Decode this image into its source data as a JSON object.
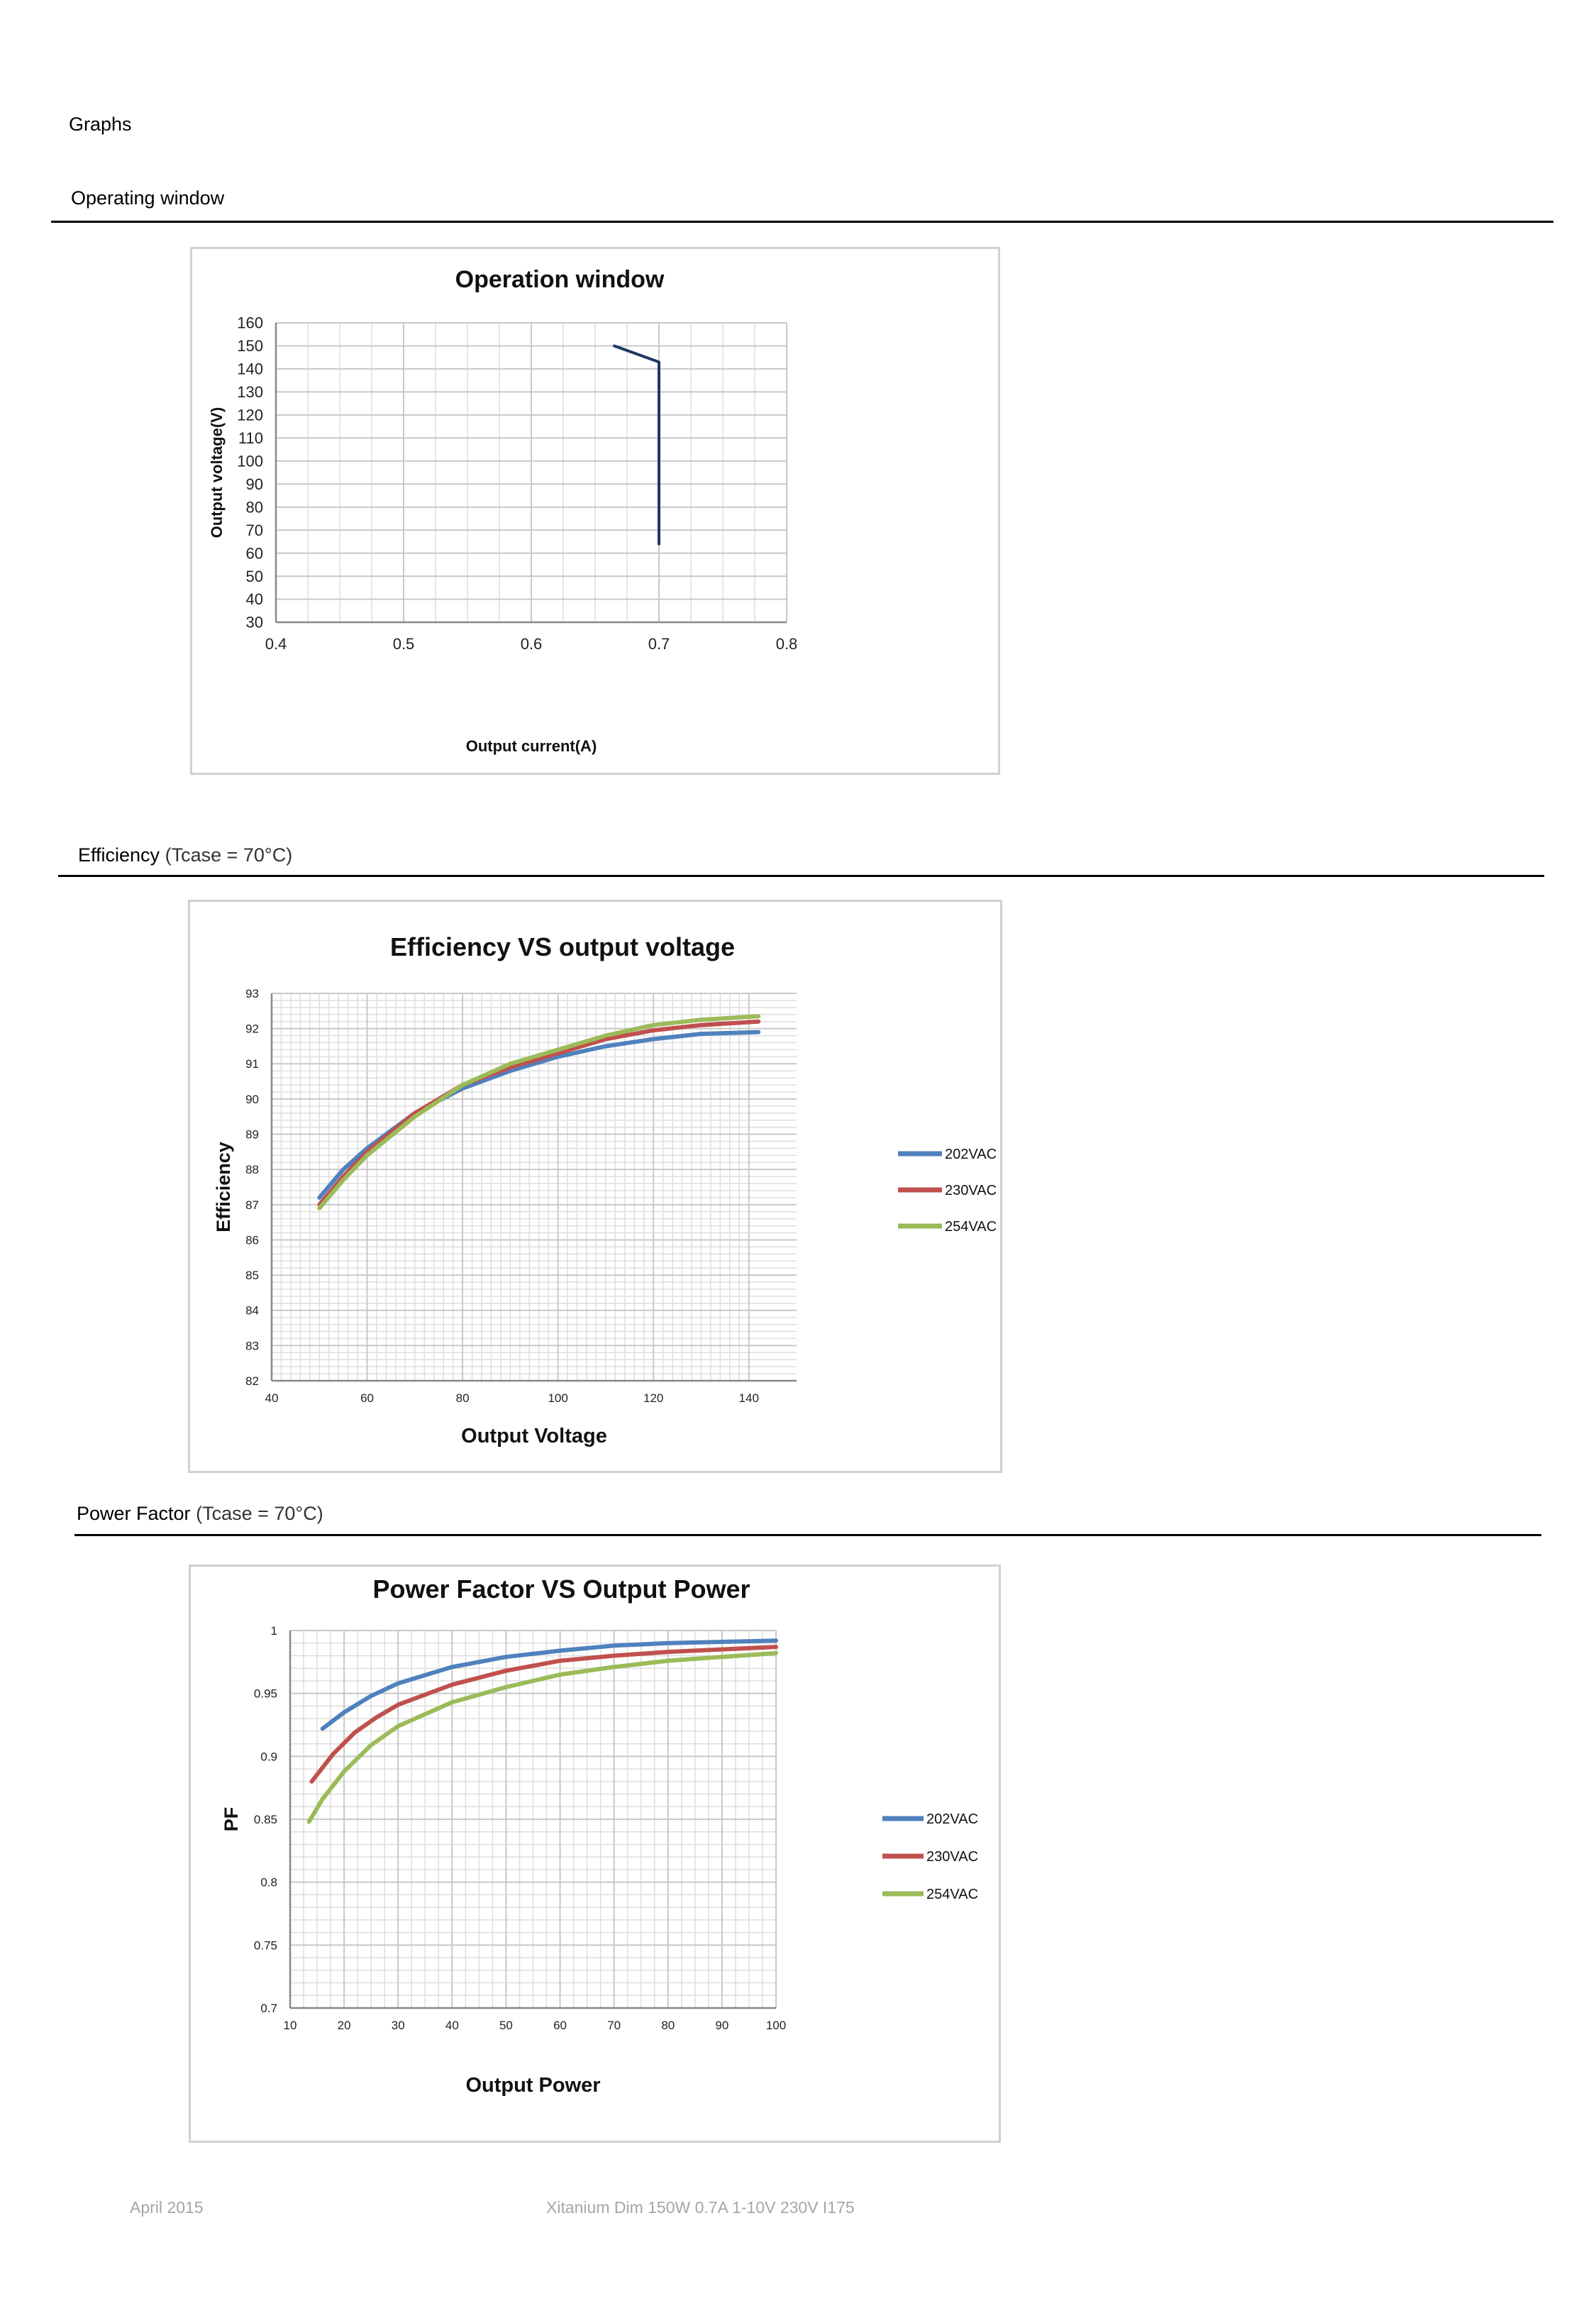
{
  "page": {
    "heading": "Graphs",
    "footer_left": "April 2015",
    "footer_center": "Xitanium Dim 150W 0.7A 1-10V 230V I175"
  },
  "sections": [
    {
      "title": "Operating window",
      "subtitle": ""
    },
    {
      "title": "Efficiency",
      "subtitle": "(Tcase = 70°C)"
    },
    {
      "title": "Power Factor",
      "subtitle": "(Tcase = 70°C)"
    }
  ],
  "colors": {
    "blue": "#4f81bd",
    "red": "#c0504d",
    "green": "#9bbb59",
    "navy": "#1f3864",
    "grid": "#c8c8c8"
  },
  "chart_data": [
    {
      "type": "line",
      "title": "Operation window",
      "xlabel": "Output current(A)",
      "ylabel": "Output voltage(V)",
      "xlim": [
        0.4,
        0.8
      ],
      "ylim": [
        30,
        160
      ],
      "xticks": [
        0.4,
        0.5,
        0.6,
        0.7,
        0.8
      ],
      "yticks": [
        30,
        40,
        50,
        60,
        70,
        80,
        90,
        100,
        110,
        120,
        130,
        140,
        150,
        160
      ],
      "grid": true,
      "series": [
        {
          "color": "#1f3864",
          "x": [
            0.665,
            0.7,
            0.7
          ],
          "y": [
            150,
            143,
            64
          ]
        }
      ]
    },
    {
      "type": "line",
      "title": "Efficiency VS output voltage",
      "xlabel": "Output Voltage",
      "ylabel": "Efficiency",
      "xlim": [
        40,
        150
      ],
      "ylim": [
        82,
        93
      ],
      "xticks": [
        40,
        60,
        80,
        100,
        120,
        140
      ],
      "yticks": [
        82,
        83,
        84,
        85,
        86,
        87,
        88,
        89,
        90,
        91,
        92,
        93
      ],
      "grid": true,
      "legend": "right",
      "series": [
        {
          "name": "202VAC",
          "color": "#4f81bd",
          "x": [
            50,
            55,
            60,
            70,
            80,
            90,
            100,
            110,
            120,
            130,
            142
          ],
          "y": [
            87.2,
            88.0,
            88.6,
            89.6,
            90.3,
            90.8,
            91.2,
            91.5,
            91.7,
            91.85,
            91.9
          ]
        },
        {
          "name": "230VAC",
          "color": "#c0504d",
          "x": [
            50,
            55,
            60,
            70,
            80,
            90,
            100,
            110,
            120,
            130,
            142
          ],
          "y": [
            87.0,
            87.8,
            88.5,
            89.6,
            90.4,
            90.9,
            91.3,
            91.7,
            91.95,
            92.1,
            92.2
          ]
        },
        {
          "name": "254VAC",
          "color": "#9bbb59",
          "x": [
            50,
            55,
            60,
            70,
            80,
            90,
            100,
            110,
            120,
            130,
            142
          ],
          "y": [
            86.9,
            87.7,
            88.4,
            89.5,
            90.4,
            91.0,
            91.4,
            91.8,
            92.1,
            92.25,
            92.35
          ]
        }
      ]
    },
    {
      "type": "line",
      "title": "Power Factor VS Output Power",
      "xlabel": "Output Power",
      "ylabel": "PF",
      "xlim": [
        10,
        100
      ],
      "ylim": [
        0.7,
        1
      ],
      "xticks": [
        10,
        20,
        30,
        40,
        50,
        60,
        70,
        80,
        90,
        100
      ],
      "yticks": [
        0.7,
        0.75,
        0.8,
        0.85,
        0.9,
        0.95,
        1
      ],
      "ytick_labels": [
        "0.7",
        "0.75",
        "0.8",
        "0.85",
        "0.9",
        "0.95",
        "1"
      ],
      "grid": true,
      "legend": "right",
      "series": [
        {
          "name": "202VAC",
          "color": "#4f81bd",
          "x": [
            16,
            20,
            25,
            30,
            40,
            50,
            60,
            70,
            80,
            90,
            100
          ],
          "y": [
            0.922,
            0.935,
            0.948,
            0.958,
            0.971,
            0.979,
            0.984,
            0.988,
            0.99,
            0.991,
            0.992
          ]
        },
        {
          "name": "230VAC",
          "color": "#c0504d",
          "x": [
            14,
            18,
            22,
            26,
            30,
            40,
            50,
            60,
            70,
            80,
            90,
            100
          ],
          "y": [
            0.88,
            0.902,
            0.919,
            0.931,
            0.941,
            0.957,
            0.968,
            0.976,
            0.98,
            0.983,
            0.985,
            0.987
          ]
        },
        {
          "name": "254VAC",
          "color": "#9bbb59",
          "x": [
            13.5,
            16,
            20,
            25,
            30,
            40,
            50,
            60,
            70,
            80,
            90,
            100
          ],
          "y": [
            0.848,
            0.866,
            0.888,
            0.909,
            0.924,
            0.943,
            0.955,
            0.965,
            0.971,
            0.976,
            0.979,
            0.982
          ]
        }
      ]
    }
  ]
}
